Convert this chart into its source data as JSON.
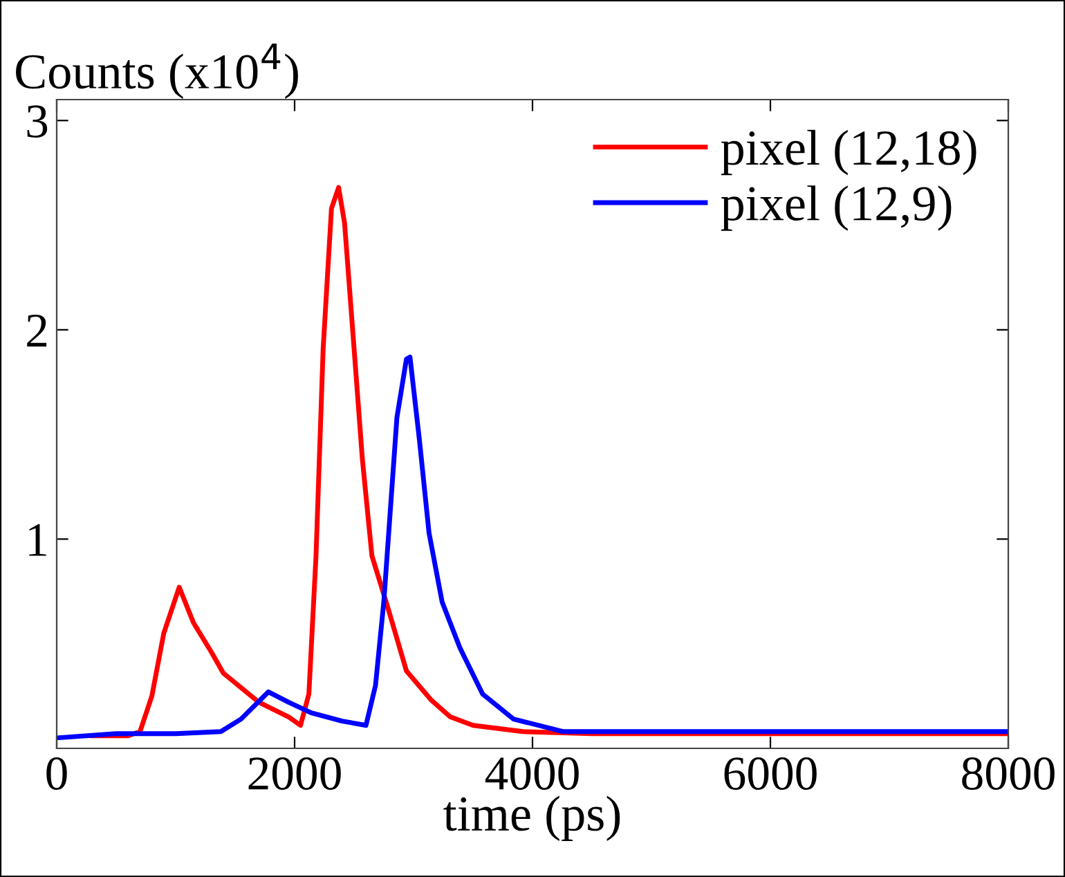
{
  "chart_data": {
    "type": "line",
    "xlabel": "time (ps)",
    "ylabel": "Counts (x10$^{4}$)",
    "xlim": [
      0,
      8000
    ],
    "ylim": [
      0,
      3.1
    ],
    "xticks": [
      0,
      2000,
      4000,
      6000,
      8000
    ],
    "yticks": [
      1,
      2,
      3
    ],
    "grid": false,
    "legend": "top right",
    "marker": "none",
    "line_style": "solid",
    "series": [
      {
        "name": "pixel (12,18)",
        "color": "#ff0000",
        "x": [
          300,
          600,
          700,
          800,
          900,
          1030,
          1150,
          1300,
          1400,
          1700,
          1950,
          2050,
          2120,
          2180,
          2240,
          2310,
          2370,
          2420,
          2500,
          2570,
          2650,
          2780,
          2940,
          3150,
          3310,
          3500,
          3920,
          4500,
          5000,
          6000,
          7000,
          8000
        ],
        "values": [
          0.06,
          0.06,
          0.08,
          0.25,
          0.55,
          0.77,
          0.6,
          0.46,
          0.36,
          0.22,
          0.15,
          0.11,
          0.26,
          0.92,
          1.91,
          2.58,
          2.68,
          2.51,
          1.91,
          1.38,
          0.92,
          0.68,
          0.37,
          0.23,
          0.15,
          0.11,
          0.08,
          0.07,
          0.07,
          0.07,
          0.07,
          0.07
        ]
      },
      {
        "name": "pixel (12,9)",
        "color": "#0000ff",
        "x": [
          0,
          500,
          1000,
          1380,
          1550,
          1780,
          1950,
          2140,
          2400,
          2600,
          2680,
          2750,
          2860,
          2940,
          2970,
          3050,
          3130,
          3240,
          3390,
          3580,
          3840,
          4260,
          5000,
          6000,
          7000,
          8000
        ],
        "values": [
          0.05,
          0.07,
          0.07,
          0.08,
          0.14,
          0.27,
          0.22,
          0.17,
          0.13,
          0.11,
          0.3,
          0.7,
          1.58,
          1.86,
          1.87,
          1.47,
          1.03,
          0.7,
          0.48,
          0.26,
          0.14,
          0.08,
          0.08,
          0.08,
          0.08,
          0.08
        ]
      }
    ]
  }
}
